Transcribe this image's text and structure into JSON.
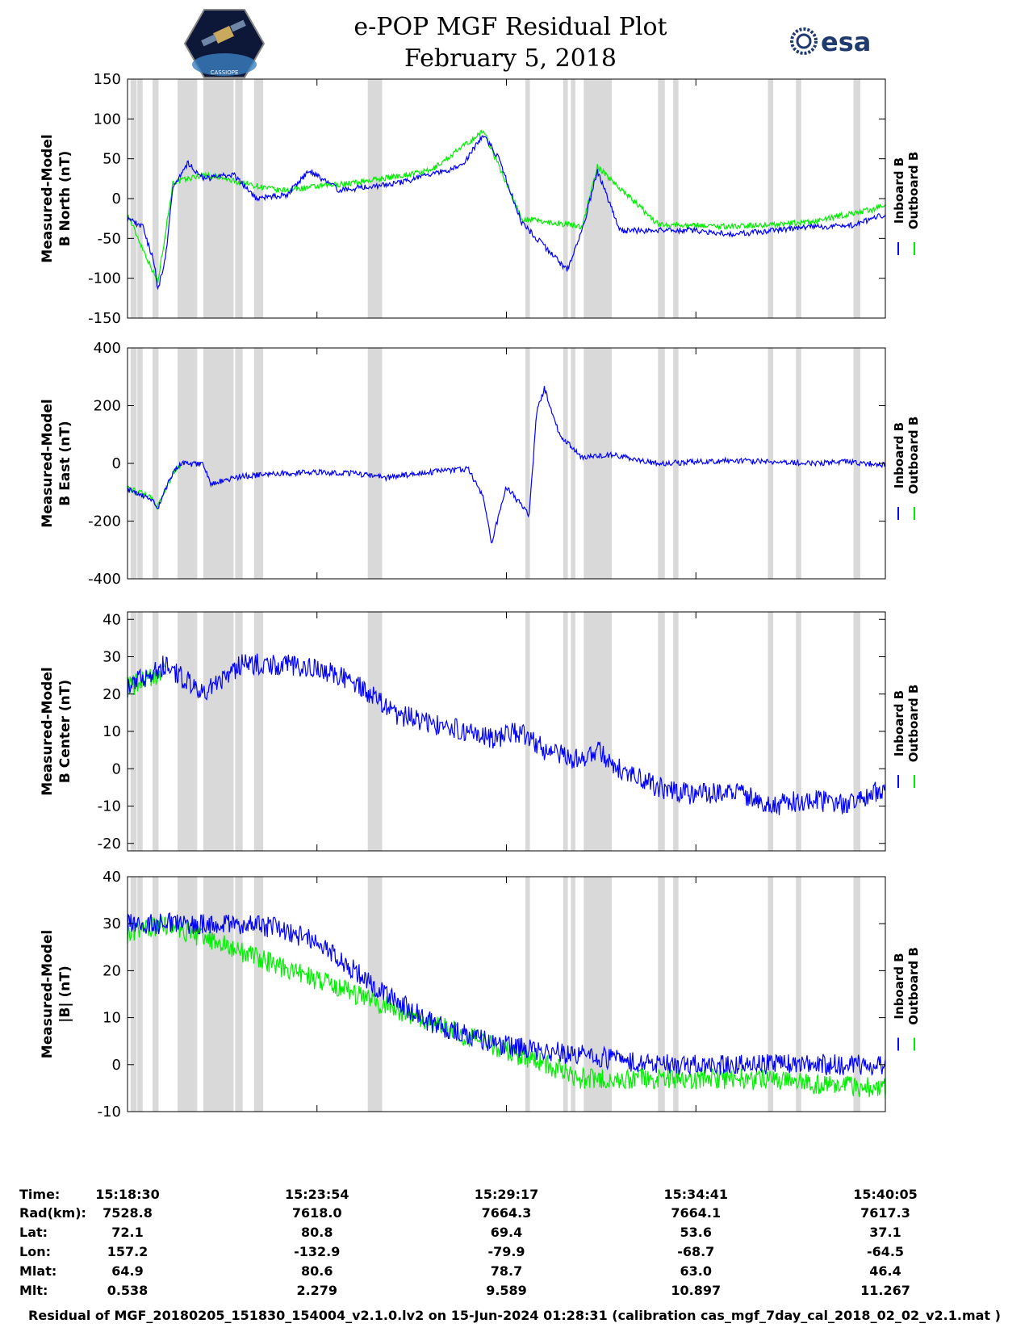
{
  "header": {
    "title_line1": "e-POP MGF Residual Plot",
    "title_line2": "February 5, 2018",
    "logo_left_text": "CASSIOPE",
    "logo_right_text": "esa"
  },
  "legend": {
    "inboard": "Inboard B",
    "outboard": "Outboard B",
    "inboard_color": "#0000ff",
    "outboard_color": "#00ee00"
  },
  "gap_color": "#d9d9d9",
  "chart_data": [
    {
      "type": "line",
      "ylabel_line1": "Measured-Model",
      "ylabel_line2": "B North (nT)",
      "ylim": [
        -150,
        150
      ],
      "yticks": [
        -150,
        -100,
        -50,
        0,
        50,
        100,
        150
      ],
      "series": [
        {
          "name": "Inboard B",
          "color": "#0000ff",
          "values": [
            [
              0,
              -25
            ],
            [
              0.02,
              -35
            ],
            [
              0.035,
              -80
            ],
            [
              0.04,
              -115
            ],
            [
              0.05,
              -75
            ],
            [
              0.06,
              15
            ],
            [
              0.08,
              45
            ],
            [
              0.1,
              25
            ],
            [
              0.14,
              30
            ],
            [
              0.17,
              0
            ],
            [
              0.21,
              5
            ],
            [
              0.24,
              35
            ],
            [
              0.28,
              10
            ],
            [
              0.32,
              15
            ],
            [
              0.36,
              20
            ],
            [
              0.4,
              30
            ],
            [
              0.44,
              40
            ],
            [
              0.47,
              80
            ],
            [
              0.49,
              50
            ],
            [
              0.52,
              -30
            ],
            [
              0.55,
              -60
            ],
            [
              0.58,
              -90
            ],
            [
              0.6,
              -40
            ],
            [
              0.62,
              35
            ],
            [
              0.65,
              -40
            ],
            [
              0.7,
              -40
            ],
            [
              0.75,
              -40
            ],
            [
              0.8,
              -45
            ],
            [
              0.85,
              -40
            ],
            [
              0.9,
              -35
            ],
            [
              0.95,
              -35
            ],
            [
              1.0,
              -20
            ]
          ]
        },
        {
          "name": "Outboard B",
          "color": "#00ee00",
          "values": [
            [
              0,
              -20
            ],
            [
              0.04,
              -105
            ],
            [
              0.06,
              20
            ],
            [
              0.1,
              30
            ],
            [
              0.2,
              10
            ],
            [
              0.3,
              20
            ],
            [
              0.4,
              35
            ],
            [
              0.47,
              85
            ],
            [
              0.52,
              -25
            ],
            [
              0.6,
              -35
            ],
            [
              0.62,
              40
            ],
            [
              0.7,
              -32
            ],
            [
              0.8,
              -35
            ],
            [
              0.9,
              -30
            ],
            [
              1.0,
              -10
            ]
          ]
        }
      ]
    },
    {
      "type": "line",
      "ylabel_line1": "Measured-Model",
      "ylabel_line2": "B East (nT)",
      "ylim": [
        -400,
        400
      ],
      "yticks": [
        -400,
        -200,
        0,
        200,
        400
      ],
      "series": [
        {
          "name": "Inboard B",
          "color": "#0000ff",
          "values": [
            [
              0,
              -90
            ],
            [
              0.03,
              -120
            ],
            [
              0.04,
              -155
            ],
            [
              0.06,
              -30
            ],
            [
              0.07,
              0
            ],
            [
              0.1,
              -5
            ],
            [
              0.11,
              -70
            ],
            [
              0.15,
              -45
            ],
            [
              0.2,
              -35
            ],
            [
              0.25,
              -30
            ],
            [
              0.3,
              -35
            ],
            [
              0.34,
              -50
            ],
            [
              0.4,
              -30
            ],
            [
              0.45,
              -20
            ],
            [
              0.47,
              -120
            ],
            [
              0.48,
              -280
            ],
            [
              0.5,
              -80
            ],
            [
              0.53,
              -180
            ],
            [
              0.54,
              180
            ],
            [
              0.55,
              260
            ],
            [
              0.57,
              100
            ],
            [
              0.6,
              20
            ],
            [
              0.64,
              30
            ],
            [
              0.7,
              0
            ],
            [
              0.8,
              10
            ],
            [
              0.85,
              5
            ],
            [
              0.9,
              0
            ],
            [
              0.95,
              5
            ],
            [
              1.0,
              -5
            ]
          ]
        },
        {
          "name": "Outboard B",
          "color": "#00ee00",
          "values": [
            [
              0,
              -85
            ],
            [
              0.03,
              -115
            ],
            [
              0.04,
              -150
            ],
            [
              0.06,
              -35
            ],
            [
              0.07,
              -5
            ]
          ]
        }
      ]
    },
    {
      "type": "line",
      "ylabel_line1": "Measured-Model",
      "ylabel_line2": "B Center (nT)",
      "ylim": [
        -22,
        42
      ],
      "yticks": [
        -20,
        -10,
        0,
        10,
        20,
        30,
        40
      ],
      "series": [
        {
          "name": "Inboard B",
          "color": "#0000ff",
          "values": [
            [
              0,
              22
            ],
            [
              0.05,
              28
            ],
            [
              0.1,
              20
            ],
            [
              0.15,
              28
            ],
            [
              0.2,
              28
            ],
            [
              0.25,
              27
            ],
            [
              0.3,
              23
            ],
            [
              0.35,
              15
            ],
            [
              0.4,
              12
            ],
            [
              0.45,
              10
            ],
            [
              0.48,
              8
            ],
            [
              0.52,
              10
            ],
            [
              0.55,
              5
            ],
            [
              0.6,
              2
            ],
            [
              0.62,
              5
            ],
            [
              0.65,
              0
            ],
            [
              0.7,
              -5
            ],
            [
              0.75,
              -7
            ],
            [
              0.8,
              -6
            ],
            [
              0.85,
              -10
            ],
            [
              0.9,
              -8
            ],
            [
              0.95,
              -10
            ],
            [
              1.0,
              -5
            ]
          ]
        },
        {
          "name": "Outboard B",
          "color": "#00ee00",
          "values": [
            [
              0,
              22
            ],
            [
              0.03,
              24
            ],
            [
              0.05,
              27
            ]
          ]
        }
      ]
    },
    {
      "type": "line",
      "ylabel_line1": "Measured-Model",
      "ylabel_line2": "|B| (nT)",
      "ylim": [
        -10,
        40
      ],
      "yticks": [
        -10,
        0,
        10,
        20,
        30,
        40
      ],
      "series": [
        {
          "name": "Inboard B",
          "color": "#0000ff",
          "values": [
            [
              0,
              30
            ],
            [
              0.05,
              30
            ],
            [
              0.1,
              30
            ],
            [
              0.15,
              30
            ],
            [
              0.2,
              29
            ],
            [
              0.25,
              26
            ],
            [
              0.3,
              20
            ],
            [
              0.35,
              14
            ],
            [
              0.4,
              9
            ],
            [
              0.45,
              6
            ],
            [
              0.5,
              4
            ],
            [
              0.55,
              3
            ],
            [
              0.6,
              2
            ],
            [
              0.65,
              1
            ],
            [
              0.7,
              0
            ],
            [
              0.75,
              0
            ],
            [
              0.8,
              0
            ],
            [
              0.85,
              0
            ],
            [
              0.9,
              0
            ],
            [
              0.95,
              0
            ],
            [
              1.0,
              0
            ]
          ]
        },
        {
          "name": "Outboard B",
          "color": "#00ee00",
          "values": [
            [
              0,
              28
            ],
            [
              0.05,
              30
            ],
            [
              0.6,
              -3
            ],
            [
              0.7,
              -3
            ],
            [
              0.8,
              -3
            ],
            [
              0.9,
              -4
            ],
            [
              1.0,
              -5
            ]
          ]
        }
      ]
    }
  ],
  "gaps": [
    [
      0.004,
      0.012
    ],
    [
      0.013,
      0.02
    ],
    [
      0.033,
      0.041
    ],
    [
      0.066,
      0.092
    ],
    [
      0.1,
      0.14
    ],
    [
      0.142,
      0.152
    ],
    [
      0.167,
      0.179
    ],
    [
      0.317,
      0.336
    ],
    [
      0.525,
      0.531
    ],
    [
      0.575,
      0.581
    ],
    [
      0.585,
      0.591
    ],
    [
      0.602,
      0.639
    ],
    [
      0.7,
      0.709
    ],
    [
      0.72,
      0.727
    ],
    [
      0.845,
      0.852
    ],
    [
      0.882,
      0.889
    ],
    [
      0.958,
      0.967
    ]
  ],
  "ephemeris": {
    "labels": [
      "Time:",
      "Rad(km):",
      "Lat:",
      "Lon:",
      "Mlat:",
      "Mlt:"
    ],
    "columns": [
      [
        "15:18:30",
        "7528.8",
        "72.1",
        "157.2",
        "64.9",
        "0.538"
      ],
      [
        "15:23:54",
        "7618.0",
        "80.8",
        "-132.9",
        "80.6",
        "2.279"
      ],
      [
        "15:29:17",
        "7664.3",
        "69.4",
        "-79.9",
        "78.7",
        "9.589"
      ],
      [
        "15:34:41",
        "7664.1",
        "53.6",
        "-68.7",
        "63.0",
        "10.897"
      ],
      [
        "15:40:05",
        "7617.3",
        "37.1",
        "-64.5",
        "46.4",
        "11.267"
      ]
    ]
  },
  "footer": "Residual of MGF_20180205_151830_154004_v2.1.0.lv2 on 15-Jun-2024 01:28:31 (calibration cas_mgf_7day_cal_2018_02_02_v2.1.mat )"
}
